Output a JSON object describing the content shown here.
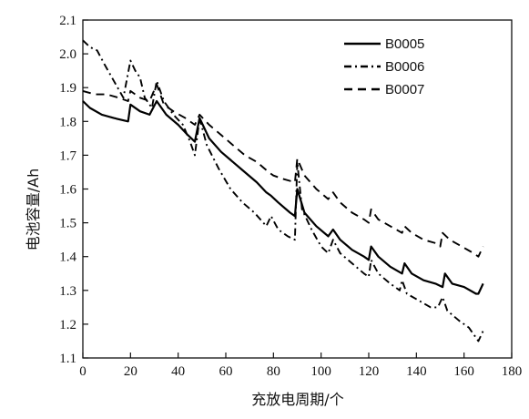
{
  "chart_data": {
    "type": "line",
    "xlabel": "充放电周期/个",
    "ylabel": "电池容量/Ah",
    "xlim": [
      0,
      180
    ],
    "ylim": [
      1.1,
      2.1
    ],
    "xticks": [
      "0",
      "20",
      "40",
      "60",
      "80",
      "100",
      "120",
      "140",
      "160",
      "180"
    ],
    "yticks": [
      "1.1",
      "1.2",
      "1.3",
      "1.4",
      "1.5",
      "1.6",
      "1.7",
      "1.8",
      "1.9",
      "2.0",
      "2.1"
    ],
    "grid": false,
    "legend_position": "top-right",
    "series": [
      {
        "name": "B0005",
        "style": "solid",
        "color": "#000000",
        "points": [
          [
            0,
            1.86
          ],
          [
            3,
            1.84
          ],
          [
            8,
            1.82
          ],
          [
            13,
            1.81
          ],
          [
            19,
            1.8
          ],
          [
            20,
            1.85
          ],
          [
            24,
            1.83
          ],
          [
            28,
            1.82
          ],
          [
            31,
            1.86
          ],
          [
            35,
            1.82
          ],
          [
            40,
            1.79
          ],
          [
            44,
            1.76
          ],
          [
            47,
            1.74
          ],
          [
            49,
            1.81
          ],
          [
            53,
            1.75
          ],
          [
            58,
            1.71
          ],
          [
            63,
            1.68
          ],
          [
            68,
            1.65
          ],
          [
            73,
            1.62
          ],
          [
            77,
            1.59
          ],
          [
            79,
            1.58
          ],
          [
            82,
            1.56
          ],
          [
            87,
            1.53
          ],
          [
            89,
            1.52
          ],
          [
            90,
            1.6
          ],
          [
            93,
            1.53
          ],
          [
            98,
            1.49
          ],
          [
            103,
            1.46
          ],
          [
            105,
            1.48
          ],
          [
            108,
            1.45
          ],
          [
            113,
            1.42
          ],
          [
            118,
            1.4
          ],
          [
            120,
            1.39
          ],
          [
            121,
            1.43
          ],
          [
            124,
            1.4
          ],
          [
            129,
            1.37
          ],
          [
            134,
            1.35
          ],
          [
            135,
            1.38
          ],
          [
            138,
            1.35
          ],
          [
            143,
            1.33
          ],
          [
            148,
            1.32
          ],
          [
            151,
            1.31
          ],
          [
            152,
            1.35
          ],
          [
            155,
            1.32
          ],
          [
            160,
            1.31
          ],
          [
            165,
            1.29
          ],
          [
            166,
            1.29
          ],
          [
            168,
            1.32
          ]
        ]
      },
      {
        "name": "B0006",
        "style": "dash-dot",
        "color": "#000000",
        "points": [
          [
            0,
            2.04
          ],
          [
            3,
            2.02
          ],
          [
            6,
            2.01
          ],
          [
            9,
            1.97
          ],
          [
            13,
            1.92
          ],
          [
            17,
            1.87
          ],
          [
            20,
            1.98
          ],
          [
            22,
            1.95
          ],
          [
            24,
            1.93
          ],
          [
            26,
            1.87
          ],
          [
            29,
            1.84
          ],
          [
            31,
            1.92
          ],
          [
            34,
            1.86
          ],
          [
            38,
            1.82
          ],
          [
            42,
            1.79
          ],
          [
            45,
            1.74
          ],
          [
            47,
            1.7
          ],
          [
            49,
            1.81
          ],
          [
            52,
            1.73
          ],
          [
            57,
            1.66
          ],
          [
            62,
            1.6
          ],
          [
            67,
            1.56
          ],
          [
            72,
            1.53
          ],
          [
            77,
            1.49
          ],
          [
            79,
            1.52
          ],
          [
            82,
            1.48
          ],
          [
            86,
            1.46
          ],
          [
            89,
            1.45
          ],
          [
            90,
            1.68
          ],
          [
            92,
            1.54
          ],
          [
            96,
            1.48
          ],
          [
            100,
            1.43
          ],
          [
            103,
            1.41
          ],
          [
            105,
            1.45
          ],
          [
            108,
            1.41
          ],
          [
            113,
            1.38
          ],
          [
            118,
            1.35
          ],
          [
            120,
            1.34
          ],
          [
            121,
            1.39
          ],
          [
            124,
            1.35
          ],
          [
            129,
            1.32
          ],
          [
            133,
            1.3
          ],
          [
            134,
            1.33
          ],
          [
            136,
            1.29
          ],
          [
            141,
            1.27
          ],
          [
            146,
            1.25
          ],
          [
            149,
            1.25
          ],
          [
            151,
            1.28
          ],
          [
            153,
            1.24
          ],
          [
            158,
            1.21
          ],
          [
            162,
            1.19
          ],
          [
            165,
            1.16
          ],
          [
            166,
            1.15
          ],
          [
            168,
            1.18
          ]
        ]
      },
      {
        "name": "B0007",
        "style": "dashed",
        "color": "#000000",
        "points": [
          [
            0,
            1.89
          ],
          [
            5,
            1.88
          ],
          [
            10,
            1.88
          ],
          [
            15,
            1.87
          ],
          [
            19,
            1.86
          ],
          [
            20,
            1.89
          ],
          [
            24,
            1.87
          ],
          [
            28,
            1.86
          ],
          [
            31,
            1.91
          ],
          [
            34,
            1.85
          ],
          [
            38,
            1.83
          ],
          [
            43,
            1.81
          ],
          [
            47,
            1.79
          ],
          [
            49,
            1.82
          ],
          [
            53,
            1.79
          ],
          [
            58,
            1.76
          ],
          [
            63,
            1.73
          ],
          [
            68,
            1.7
          ],
          [
            73,
            1.68
          ],
          [
            78,
            1.65
          ],
          [
            80,
            1.64
          ],
          [
            84,
            1.63
          ],
          [
            89,
            1.62
          ],
          [
            90,
            1.69
          ],
          [
            93,
            1.64
          ],
          [
            98,
            1.6
          ],
          [
            103,
            1.57
          ],
          [
            105,
            1.59
          ],
          [
            108,
            1.56
          ],
          [
            113,
            1.53
          ],
          [
            118,
            1.51
          ],
          [
            120,
            1.5
          ],
          [
            121,
            1.54
          ],
          [
            124,
            1.51
          ],
          [
            129,
            1.49
          ],
          [
            134,
            1.47
          ],
          [
            135,
            1.49
          ],
          [
            138,
            1.47
          ],
          [
            143,
            1.45
          ],
          [
            148,
            1.44
          ],
          [
            150,
            1.43
          ],
          [
            151,
            1.47
          ],
          [
            154,
            1.45
          ],
          [
            159,
            1.43
          ],
          [
            164,
            1.41
          ],
          [
            166,
            1.4
          ],
          [
            168,
            1.43
          ]
        ]
      }
    ]
  }
}
